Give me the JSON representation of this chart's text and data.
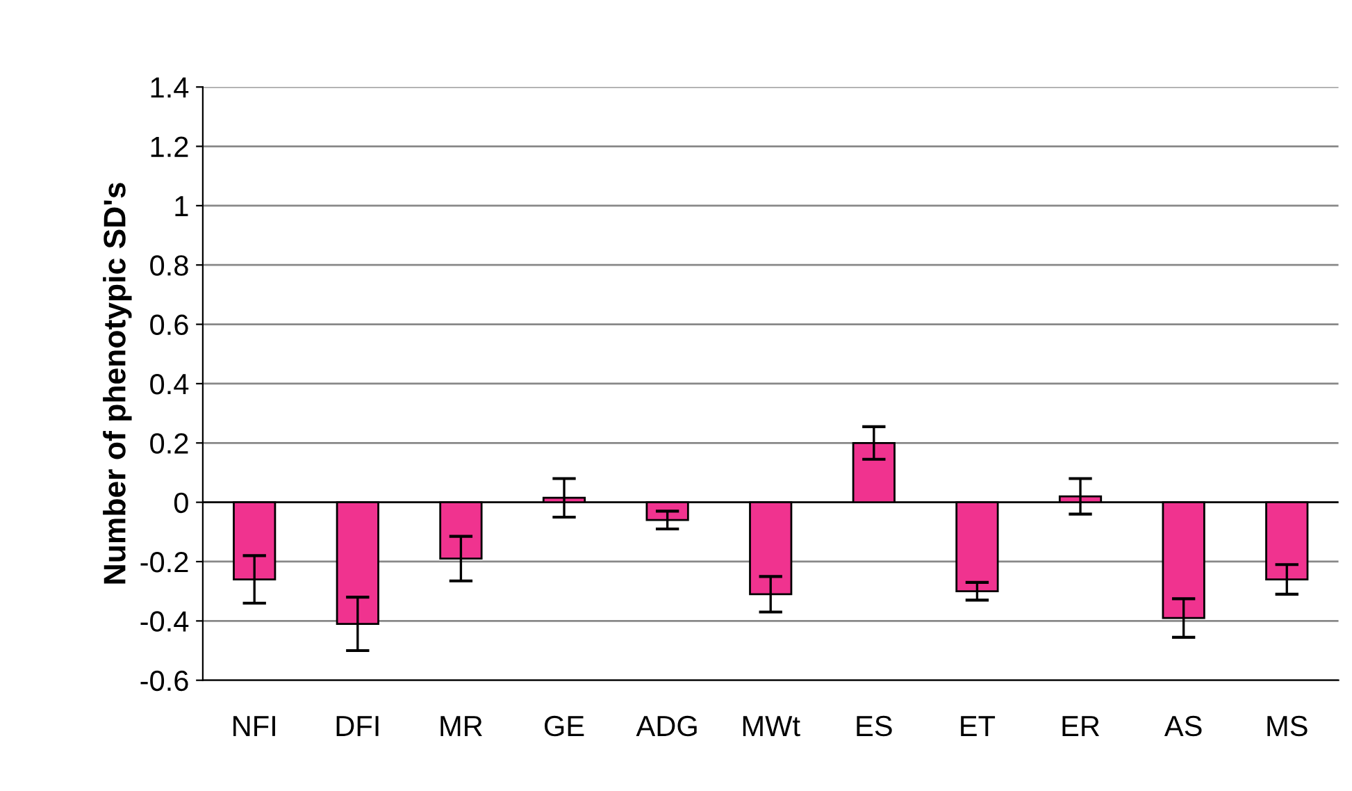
{
  "chart_data": {
    "type": "bar",
    "ylabel": "Number of phenotypic SD's",
    "categories": [
      "NFI",
      "DFI",
      "MR",
      "GE",
      "ADG",
      "MWt",
      "ES",
      "ET",
      "ER",
      "AS",
      "MS"
    ],
    "values": [
      -0.26,
      -0.41,
      -0.19,
      0.015,
      -0.06,
      -0.31,
      0.2,
      -0.3,
      0.02,
      -0.39,
      -0.26
    ],
    "errors": [
      0.08,
      0.09,
      0.075,
      0.065,
      0.03,
      0.06,
      0.055,
      0.03,
      0.06,
      0.065,
      0.05
    ],
    "color": "#f0338f",
    "ylim": [
      -0.6,
      1.4
    ],
    "yticks": [
      -0.6,
      -0.4,
      -0.2,
      0,
      0.2,
      0.4,
      0.6,
      0.8,
      1,
      1.2,
      1.4
    ],
    "grid": "y"
  }
}
